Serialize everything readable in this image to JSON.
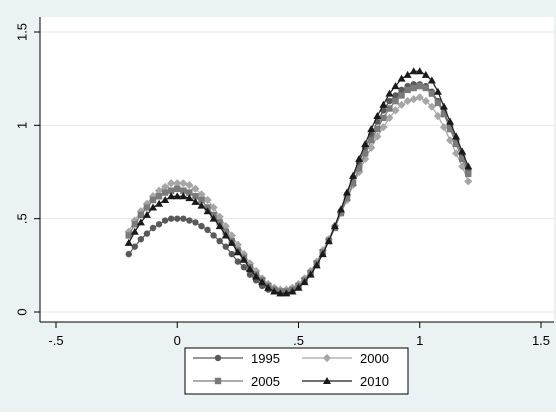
{
  "chart_data": {
    "type": "line",
    "title": "",
    "xlabel": "",
    "ylabel": "",
    "xlim": [
      -0.5,
      1.5
    ],
    "ylim": [
      0,
      1.5
    ],
    "x_ticks": [
      {
        "value": -0.5,
        "label": "-.5"
      },
      {
        "value": 0,
        "label": "0"
      },
      {
        "value": 0.5,
        "label": ".5"
      },
      {
        "value": 1,
        "label": "1"
      },
      {
        "value": 1.5,
        "label": "1.5"
      }
    ],
    "y_ticks": [
      {
        "value": 0,
        "label": "0"
      },
      {
        "value": 0.5,
        "label": ".5"
      },
      {
        "value": 1,
        "label": "1"
      },
      {
        "value": 1.5,
        "label": "1.5"
      }
    ],
    "grid": "horizontal",
    "legend_position": "bottom",
    "x": [
      -0.2,
      -0.175,
      -0.15,
      -0.125,
      -0.1,
      -0.075,
      -0.05,
      -0.025,
      0.0,
      0.025,
      0.05,
      0.075,
      0.1,
      0.125,
      0.15,
      0.175,
      0.2,
      0.225,
      0.25,
      0.275,
      0.3,
      0.325,
      0.35,
      0.375,
      0.4,
      0.425,
      0.45,
      0.475,
      0.5,
      0.525,
      0.55,
      0.575,
      0.6,
      0.625,
      0.65,
      0.675,
      0.7,
      0.725,
      0.75,
      0.775,
      0.8,
      0.825,
      0.85,
      0.875,
      0.9,
      0.925,
      0.95,
      0.975,
      1.0,
      1.025,
      1.05,
      1.075,
      1.1,
      1.125,
      1.15,
      1.175,
      1.2
    ],
    "series": [
      {
        "name": "1995",
        "color": "#595959",
        "marker": "circle",
        "values": [
          0.31,
          0.35,
          0.39,
          0.42,
          0.45,
          0.47,
          0.49,
          0.5,
          0.5,
          0.5,
          0.49,
          0.48,
          0.46,
          0.44,
          0.41,
          0.38,
          0.35,
          0.31,
          0.27,
          0.24,
          0.2,
          0.17,
          0.14,
          0.12,
          0.11,
          0.1,
          0.11,
          0.12,
          0.14,
          0.17,
          0.21,
          0.26,
          0.32,
          0.39,
          0.46,
          0.54,
          0.63,
          0.72,
          0.8,
          0.88,
          0.95,
          1.02,
          1.08,
          1.13,
          1.16,
          1.19,
          1.21,
          1.22,
          1.22,
          1.21,
          1.18,
          1.13,
          1.07,
          1.0,
          0.92,
          0.84,
          0.76
        ]
      },
      {
        "name": "2000",
        "color": "#a6a6a6",
        "marker": "diamond",
        "values": [
          0.43,
          0.49,
          0.54,
          0.58,
          0.62,
          0.65,
          0.67,
          0.69,
          0.69,
          0.69,
          0.68,
          0.66,
          0.63,
          0.6,
          0.56,
          0.51,
          0.46,
          0.41,
          0.36,
          0.31,
          0.26,
          0.22,
          0.18,
          0.15,
          0.13,
          0.12,
          0.12,
          0.13,
          0.15,
          0.18,
          0.22,
          0.27,
          0.33,
          0.39,
          0.46,
          0.53,
          0.6,
          0.68,
          0.75,
          0.82,
          0.88,
          0.94,
          0.99,
          1.04,
          1.08,
          1.11,
          1.13,
          1.14,
          1.15,
          1.13,
          1.1,
          1.05,
          0.99,
          0.92,
          0.85,
          0.78,
          0.7
        ]
      },
      {
        "name": "2005",
        "color": "#7a7a7a",
        "marker": "square",
        "values": [
          0.41,
          0.47,
          0.52,
          0.56,
          0.6,
          0.62,
          0.64,
          0.65,
          0.66,
          0.65,
          0.64,
          0.62,
          0.6,
          0.56,
          0.52,
          0.48,
          0.43,
          0.38,
          0.33,
          0.29,
          0.24,
          0.2,
          0.17,
          0.14,
          0.12,
          0.11,
          0.11,
          0.12,
          0.14,
          0.17,
          0.21,
          0.26,
          0.32,
          0.38,
          0.45,
          0.53,
          0.61,
          0.69,
          0.77,
          0.85,
          0.92,
          0.98,
          1.04,
          1.09,
          1.13,
          1.16,
          1.19,
          1.2,
          1.21,
          1.2,
          1.17,
          1.12,
          1.06,
          0.98,
          0.9,
          0.82,
          0.74
        ]
      },
      {
        "name": "2010",
        "color": "#1a1a1a",
        "marker": "triangle",
        "values": [
          0.37,
          0.43,
          0.48,
          0.52,
          0.56,
          0.58,
          0.6,
          0.62,
          0.62,
          0.62,
          0.61,
          0.59,
          0.57,
          0.54,
          0.5,
          0.46,
          0.41,
          0.37,
          0.32,
          0.28,
          0.23,
          0.19,
          0.16,
          0.13,
          0.11,
          0.1,
          0.1,
          0.11,
          0.13,
          0.16,
          0.2,
          0.25,
          0.31,
          0.38,
          0.46,
          0.55,
          0.64,
          0.73,
          0.82,
          0.9,
          0.98,
          1.05,
          1.11,
          1.17,
          1.21,
          1.25,
          1.27,
          1.29,
          1.29,
          1.27,
          1.24,
          1.18,
          1.1,
          1.02,
          0.94,
          0.86,
          0.78
        ]
      }
    ]
  }
}
